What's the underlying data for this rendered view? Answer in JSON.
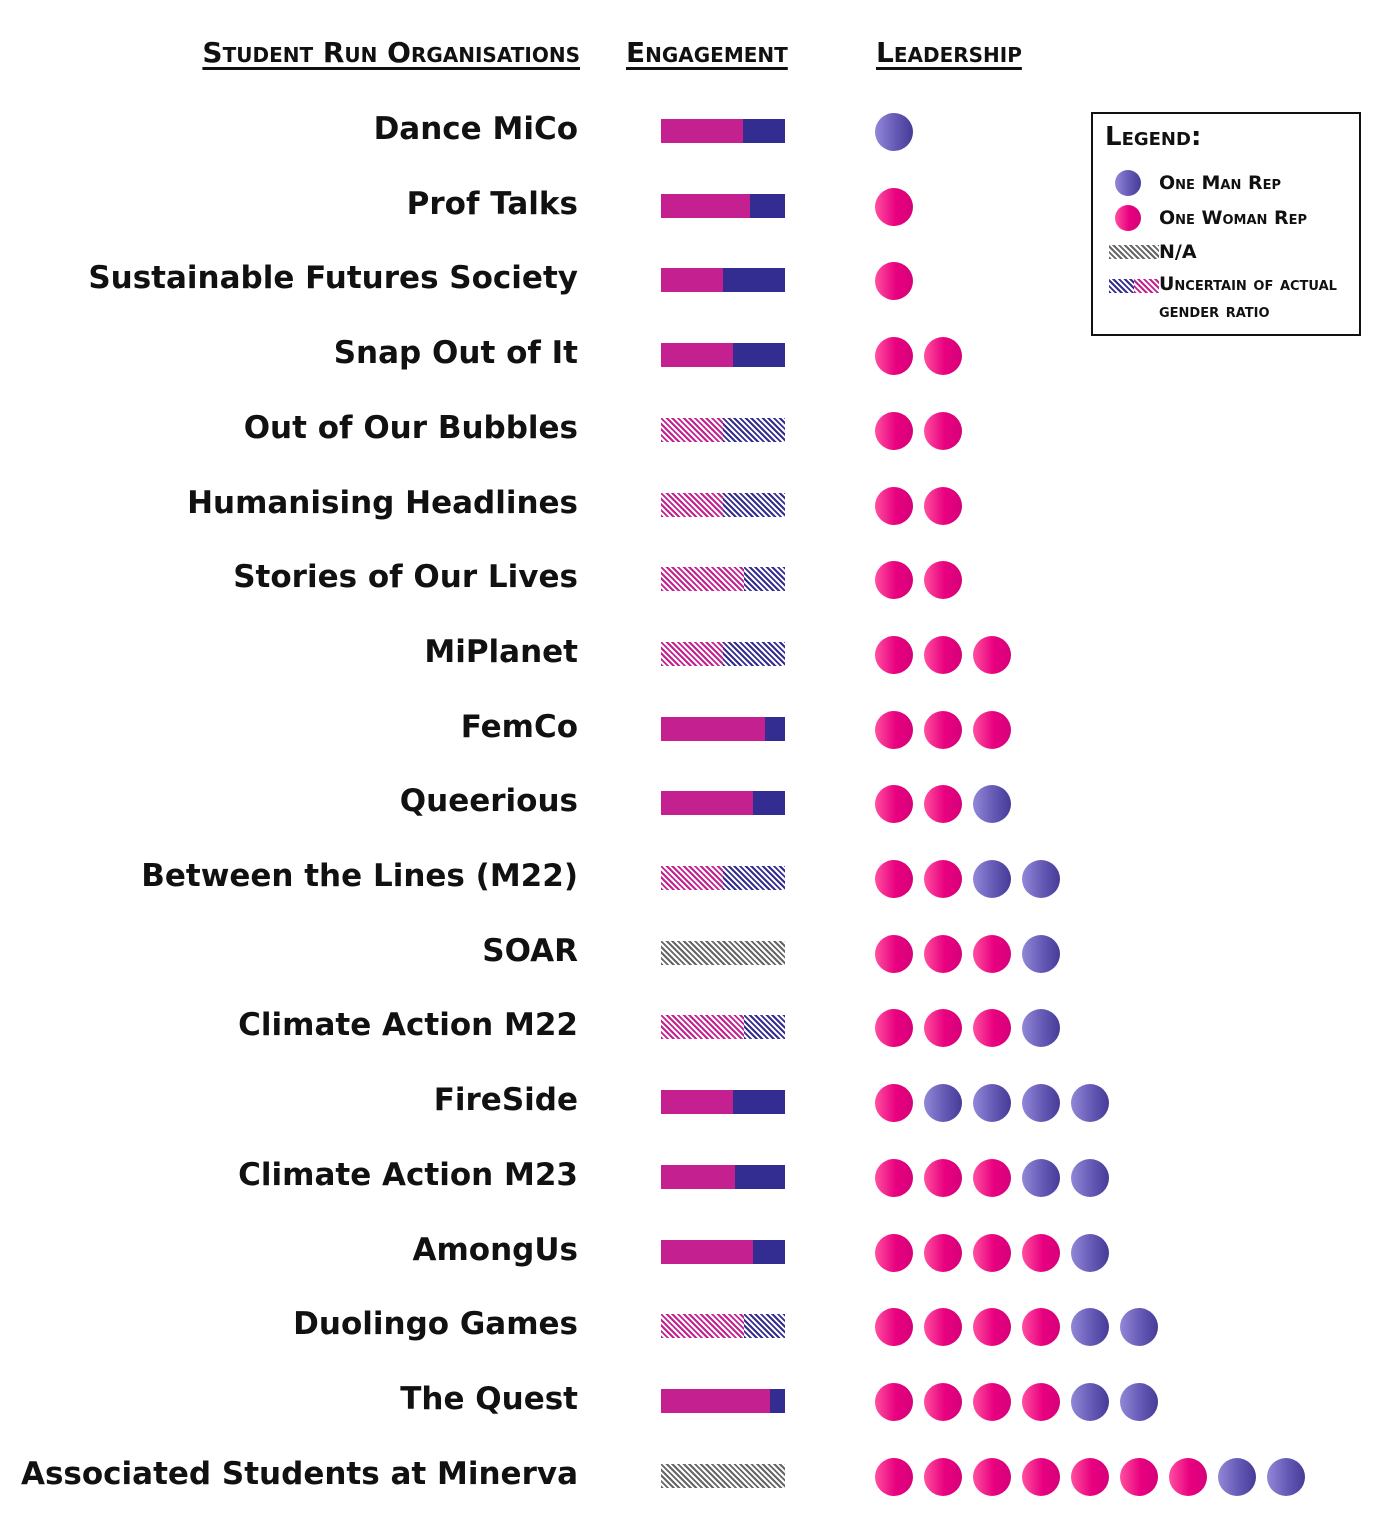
{
  "headers": {
    "organisations": "Student Run Organisations",
    "engagement": "Engagement",
    "leadership": "Leadership"
  },
  "legend": {
    "title": "Legend:",
    "items": [
      {
        "key": "man",
        "label": "One Man Rep"
      },
      {
        "key": "woman",
        "label": "One Woman Rep"
      },
      {
        "key": "na",
        "label": "N/A"
      },
      {
        "key": "uncertain",
        "label": "Uncertain of actual gender ratio"
      }
    ]
  },
  "colors": {
    "woman_bar": "#c4208f",
    "man_bar": "#332d91",
    "woman_dot": "#e8007f",
    "man_dot": "#6459b4",
    "na": "#666666"
  },
  "chart_data": {
    "type": "bar",
    "categories": [
      "Dance MiCo",
      "Prof Talks",
      "Sustainable Futures Society",
      "Snap Out of It",
      "Out of Our Bubbles",
      "Humanising Headlines",
      "Stories of Our Lives",
      "MiPlanet",
      "FemCo",
      "Queerious",
      "Between the Lines (M22)",
      "SOAR",
      "Climate Action M22",
      "FireSide",
      "Climate Action M23",
      "AmongUs",
      "Duolingo Games",
      "The Quest",
      "Associated Students at Minerva"
    ],
    "engagement": [
      {
        "woman_share": 0.66,
        "uncertain": false,
        "na": false
      },
      {
        "woman_share": 0.72,
        "uncertain": false,
        "na": false
      },
      {
        "woman_share": 0.5,
        "uncertain": false,
        "na": false
      },
      {
        "woman_share": 0.58,
        "uncertain": false,
        "na": false
      },
      {
        "woman_share": 0.5,
        "uncertain": true,
        "na": false
      },
      {
        "woman_share": 0.5,
        "uncertain": true,
        "na": false
      },
      {
        "woman_share": 0.67,
        "uncertain": true,
        "na": false
      },
      {
        "woman_share": 0.5,
        "uncertain": true,
        "na": false
      },
      {
        "woman_share": 0.84,
        "uncertain": false,
        "na": false
      },
      {
        "woman_share": 0.74,
        "uncertain": false,
        "na": false
      },
      {
        "woman_share": 0.5,
        "uncertain": true,
        "na": false
      },
      {
        "woman_share": null,
        "uncertain": false,
        "na": true
      },
      {
        "woman_share": 0.67,
        "uncertain": true,
        "na": false
      },
      {
        "woman_share": 0.58,
        "uncertain": false,
        "na": false
      },
      {
        "woman_share": 0.6,
        "uncertain": false,
        "na": false
      },
      {
        "woman_share": 0.74,
        "uncertain": false,
        "na": false
      },
      {
        "woman_share": 0.67,
        "uncertain": true,
        "na": false
      },
      {
        "woman_share": 0.88,
        "uncertain": false,
        "na": false
      },
      {
        "woman_share": null,
        "uncertain": false,
        "na": true
      }
    ],
    "leadership": [
      [
        "man"
      ],
      [
        "woman"
      ],
      [
        "woman"
      ],
      [
        "woman",
        "woman"
      ],
      [
        "woman",
        "woman"
      ],
      [
        "woman",
        "woman"
      ],
      [
        "woman",
        "woman"
      ],
      [
        "woman",
        "woman",
        "woman"
      ],
      [
        "woman",
        "woman",
        "woman"
      ],
      [
        "woman",
        "woman",
        "man"
      ],
      [
        "woman",
        "woman",
        "man",
        "man"
      ],
      [
        "woman",
        "woman",
        "woman",
        "man"
      ],
      [
        "woman",
        "woman",
        "woman",
        "man"
      ],
      [
        "woman",
        "man",
        "man",
        "man",
        "man"
      ],
      [
        "woman",
        "woman",
        "woman",
        "man",
        "man"
      ],
      [
        "woman",
        "woman",
        "woman",
        "woman",
        "man"
      ],
      [
        "woman",
        "woman",
        "woman",
        "woman",
        "man",
        "man"
      ],
      [
        "woman",
        "woman",
        "woman",
        "woman",
        "man",
        "man"
      ],
      [
        "woman",
        "woman",
        "woman",
        "woman",
        "woman",
        "woman",
        "woman",
        "man",
        "man"
      ]
    ]
  }
}
